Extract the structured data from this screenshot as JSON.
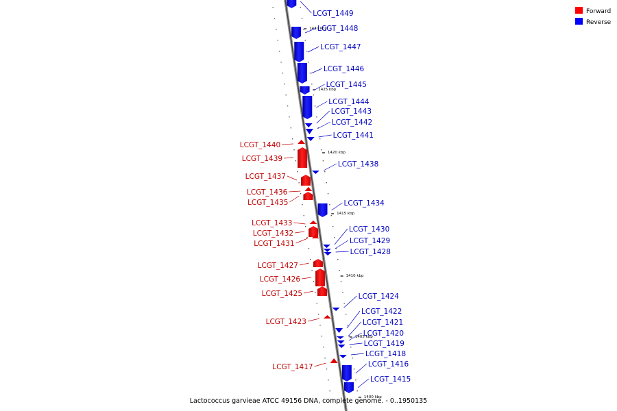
{
  "caption": "Lactococcus garvieae ATCC 49156 DNA, complete genome. - 0..1950135",
  "legend": [
    {
      "label": "Forward",
      "color": "#ff0000"
    },
    {
      "label": "Reverse",
      "color": "#0000ff"
    }
  ],
  "ticks": [
    "1430 kbp",
    "1425 kbp",
    "1420 kbp",
    "1415 kbp",
    "1410 kbp",
    "1405 kbp",
    "1400 kbp"
  ],
  "genes": [
    {
      "label": "LCGT_1449",
      "strand": "reverse"
    },
    {
      "label": "LCGT_1448",
      "strand": "reverse"
    },
    {
      "label": "LCGT_1447",
      "strand": "reverse"
    },
    {
      "label": "LCGT_1446",
      "strand": "reverse"
    },
    {
      "label": "LCGT_1445",
      "strand": "reverse"
    },
    {
      "label": "LCGT_1444",
      "strand": "reverse"
    },
    {
      "label": "LCGT_1443",
      "strand": "reverse"
    },
    {
      "label": "LCGT_1442",
      "strand": "reverse"
    },
    {
      "label": "LCGT_1441",
      "strand": "reverse"
    },
    {
      "label": "LCGT_1440",
      "strand": "forward"
    },
    {
      "label": "LCGT_1439",
      "strand": "forward"
    },
    {
      "label": "LCGT_1438",
      "strand": "reverse"
    },
    {
      "label": "LCGT_1437",
      "strand": "forward"
    },
    {
      "label": "LCGT_1436",
      "strand": "forward"
    },
    {
      "label": "LCGT_1435",
      "strand": "forward"
    },
    {
      "label": "LCGT_1434",
      "strand": "reverse"
    },
    {
      "label": "LCGT_1433",
      "strand": "forward"
    },
    {
      "label": "LCGT_1432",
      "strand": "forward"
    },
    {
      "label": "LCGT_1431",
      "strand": "forward"
    },
    {
      "label": "LCGT_1430",
      "strand": "reverse"
    },
    {
      "label": "LCGT_1429",
      "strand": "reverse"
    },
    {
      "label": "LCGT_1428",
      "strand": "reverse"
    },
    {
      "label": "LCGT_1427",
      "strand": "forward"
    },
    {
      "label": "LCGT_1426",
      "strand": "forward"
    },
    {
      "label": "LCGT_1425",
      "strand": "forward"
    },
    {
      "label": "LCGT_1424",
      "strand": "reverse"
    },
    {
      "label": "LCGT_1423",
      "strand": "forward"
    },
    {
      "label": "LCGT_1422",
      "strand": "reverse"
    },
    {
      "label": "LCGT_1421",
      "strand": "reverse"
    },
    {
      "label": "LCGT_1420",
      "strand": "reverse"
    },
    {
      "label": "LCGT_1419",
      "strand": "reverse"
    },
    {
      "label": "LCGT_1418",
      "strand": "reverse"
    },
    {
      "label": "LCGT_1417",
      "strand": "forward"
    },
    {
      "label": "LCGT_1416",
      "strand": "reverse"
    },
    {
      "label": "LCGT_1415",
      "strand": "reverse"
    }
  ]
}
